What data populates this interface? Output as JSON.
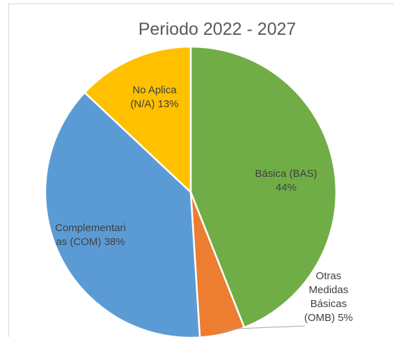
{
  "chart_data": {
    "type": "pie",
    "title": "Periodo 2022 - 2027",
    "categories": [
      "Básica (BAS)",
      "Otras Medidas Básicas (OMB)",
      "Complementarias (COM)",
      "No Aplica (N/A)"
    ],
    "values": [
      44,
      5,
      38,
      13
    ],
    "value_labels": [
      "44%",
      "5%",
      "38%",
      "13%"
    ],
    "colors": [
      "#70ad47",
      "#ed7d31",
      "#5b9bd5",
      "#ffc000"
    ]
  }
}
